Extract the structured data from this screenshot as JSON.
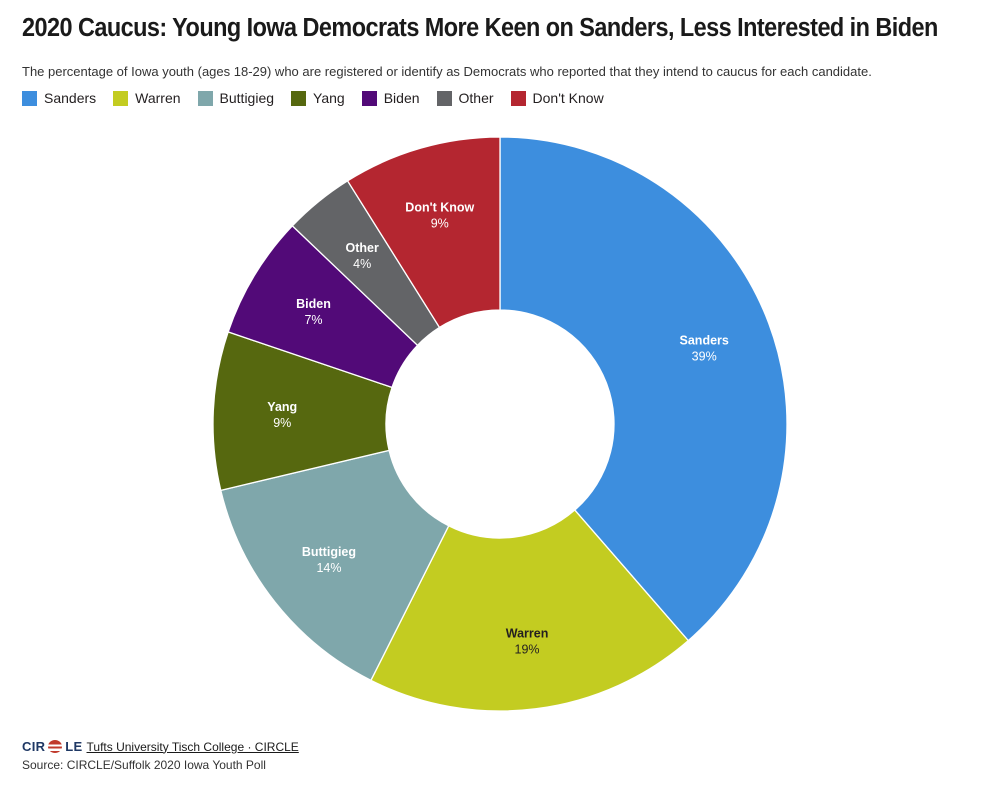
{
  "title": "2020 Caucus: Young Iowa Democrats More Keen on Sanders, Less Interested in Biden",
  "subtitle": "The percentage of Iowa youth (ages 18-29) who are registered or identify as Democrats who reported that they intend to caucus for each candidate.",
  "legend": [
    {
      "label": "Sanders",
      "color": "#3d8ede"
    },
    {
      "label": "Warren",
      "color": "#c3cc21"
    },
    {
      "label": "Buttigieg",
      "color": "#7fa7ab"
    },
    {
      "label": "Yang",
      "color": "#56680f"
    },
    {
      "label": "Biden",
      "color": "#520a78"
    },
    {
      "label": "Other",
      "color": "#636467"
    },
    {
      "label": "Don't Know",
      "color": "#b42630"
    }
  ],
  "chart_data": {
    "type": "pie",
    "variant": "donut",
    "title": "2020 Caucus: Young Iowa Democrats More Keen on Sanders, Less Interested in Biden",
    "categories": [
      "Sanders",
      "Warren",
      "Buttigieg",
      "Yang",
      "Biden",
      "Other",
      "Don't Know"
    ],
    "values": [
      39,
      19,
      14,
      9,
      7,
      4,
      9
    ],
    "value_labels": [
      "39%",
      "19%",
      "14%",
      "9%",
      "7%",
      "4%",
      "9%"
    ],
    "colors": [
      "#3d8ede",
      "#c3cc21",
      "#7fa7ab",
      "#56680f",
      "#520a78",
      "#636467",
      "#b42630"
    ],
    "label_colors": [
      "#ffffff",
      "#231f20",
      "#ffffff",
      "#ffffff",
      "#ffffff",
      "#ffffff",
      "#ffffff"
    ],
    "legend_position": "top-left"
  },
  "footer": {
    "logo_part1": "CIR",
    "logo_part2": "LE",
    "link_text": "Tufts University Tisch College · CIRCLE",
    "source": "Source: CIRCLE/Suffolk 2020 Iowa Youth Poll"
  }
}
